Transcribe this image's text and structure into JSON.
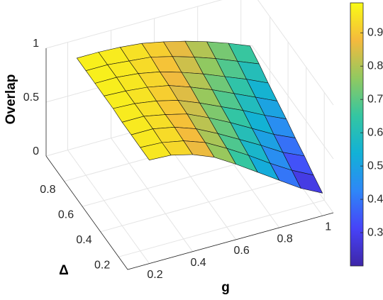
{
  "chart_data": {
    "type": "surface",
    "zlabel": "Overlap",
    "xlabel": "g",
    "ylabel": "Δ",
    "x": [
      0.2,
      0.3,
      0.4,
      0.5,
      0.6,
      0.7,
      0.8,
      0.9,
      1.0
    ],
    "y": [
      0.1,
      0.2,
      0.3,
      0.4,
      0.5,
      0.6,
      0.7,
      0.8,
      0.9
    ],
    "z": [
      [
        0.96,
        0.95,
        0.9,
        0.82,
        0.7,
        0.57,
        0.44,
        0.31,
        0.21
      ],
      [
        0.96,
        0.95,
        0.91,
        0.84,
        0.73,
        0.61,
        0.48,
        0.36,
        0.26
      ],
      [
        0.96,
        0.96,
        0.92,
        0.85,
        0.75,
        0.64,
        0.53,
        0.41,
        0.32
      ],
      [
        0.96,
        0.96,
        0.92,
        0.87,
        0.78,
        0.68,
        0.57,
        0.46,
        0.37
      ],
      [
        0.97,
        0.96,
        0.93,
        0.88,
        0.8,
        0.71,
        0.62,
        0.52,
        0.43
      ],
      [
        0.97,
        0.96,
        0.94,
        0.9,
        0.83,
        0.75,
        0.66,
        0.57,
        0.48
      ],
      [
        0.97,
        0.97,
        0.95,
        0.91,
        0.85,
        0.78,
        0.7,
        0.62,
        0.53
      ],
      [
        0.97,
        0.97,
        0.95,
        0.93,
        0.88,
        0.82,
        0.75,
        0.67,
        0.59
      ],
      [
        0.97,
        0.97,
        0.96,
        0.94,
        0.9,
        0.85,
        0.79,
        0.72,
        0.64
      ]
    ],
    "xlim": [
      0.1,
      1.05
    ],
    "ylim": [
      0.1,
      1.0
    ],
    "zlim": [
      0,
      1
    ],
    "xticks": [
      0.2,
      0.4,
      0.6,
      0.8,
      1
    ],
    "yticks": [
      0.2,
      0.4,
      0.6,
      0.8
    ],
    "zticks": [
      0,
      0.5,
      1
    ],
    "grid": true,
    "colormap": [
      "#3e26a8",
      "#4743f8",
      "#2e87f7",
      "#12b1d6",
      "#34c6a1",
      "#91c960",
      "#f4ba3d",
      "#f9fb15"
    ],
    "clim": [
      0.2,
      0.99
    ],
    "colorbar_ticks": [
      0.3,
      0.4,
      0.5,
      0.6,
      0.7,
      0.8,
      0.9
    ]
  }
}
